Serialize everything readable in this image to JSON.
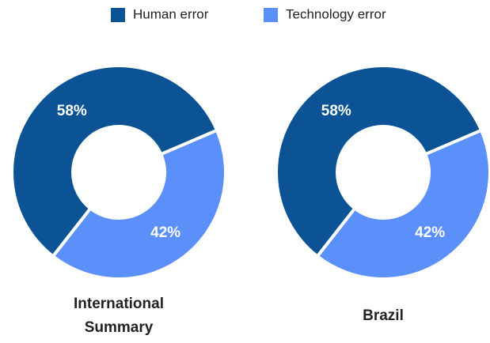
{
  "chart_data": [
    {
      "type": "donut",
      "title": "International Summary",
      "categories": [
        "Human error",
        "Technology error"
      ],
      "values": [
        58,
        42
      ],
      "value_labels": [
        "58%",
        "42%"
      ],
      "colors": [
        "#0b5394",
        "#5b8ff9"
      ]
    },
    {
      "type": "donut",
      "title": "Brazil",
      "categories": [
        "Human error",
        "Technology error"
      ],
      "values": [
        58,
        42
      ],
      "value_labels": [
        "58%",
        "42%"
      ],
      "colors": [
        "#0b5394",
        "#5b8ff9"
      ]
    }
  ]
}
